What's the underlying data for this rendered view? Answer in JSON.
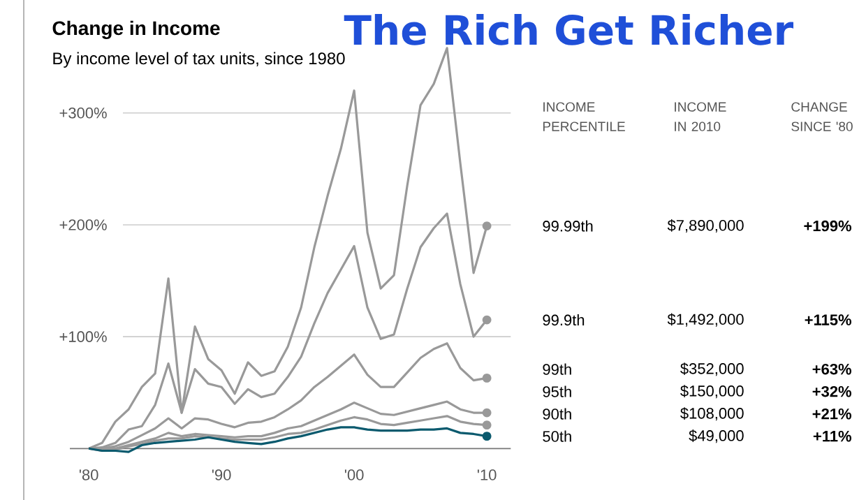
{
  "chart_data": {
    "type": "line",
    "title": "Change in Income",
    "subtitle": "By income level of tax units, since 1980",
    "annotations": [
      "The Rich Get Richer",
      "INCOME PERCENTILE",
      "INCOME IN 2010",
      "CHANGE SINCE '80",
      "$7,890,000",
      "$1,492,000",
      "$352,000",
      "$150,000",
      "$108,000",
      "$49,000",
      "+199%",
      "+115%",
      "+63%",
      "+32%",
      "+21%",
      "+11%"
    ],
    "x": [
      1980,
      1981,
      1982,
      1983,
      1984,
      1985,
      1986,
      1987,
      1988,
      1989,
      1990,
      1991,
      1992,
      1993,
      1994,
      1995,
      1996,
      1997,
      1998,
      1999,
      2000,
      2001,
      2002,
      2003,
      2004,
      2005,
      2006,
      2007,
      2008,
      2009,
      2010
    ],
    "series": [
      {
        "name": "99.99th",
        "color": "#999999",
        "values": [
          0,
          5,
          24,
          35,
          55,
          67,
          152,
          32,
          109,
          80,
          70,
          49,
          77,
          65,
          69,
          91,
          126,
          180,
          226,
          268,
          320,
          193,
          143,
          155,
          235,
          307,
          326,
          358,
          255,
          157,
          199
        ]
      },
      {
        "name": "99.9th",
        "color": "#999999",
        "values": [
          0,
          1,
          5,
          17,
          20,
          39,
          76,
          32,
          71,
          58,
          55,
          40,
          53,
          46,
          49,
          64,
          82,
          112,
          139,
          160,
          181,
          126,
          98,
          102,
          143,
          180,
          197,
          210,
          147,
          100,
          115
        ]
      },
      {
        "name": "99th",
        "color": "#999999",
        "values": [
          0,
          0,
          2,
          6,
          12,
          18,
          27,
          18,
          27,
          26,
          22,
          19,
          23,
          24,
          28,
          35,
          43,
          55,
          64,
          74,
          84,
          66,
          55,
          55,
          68,
          81,
          89,
          94,
          72,
          61,
          63
        ]
      },
      {
        "name": "95th",
        "color": "#999999",
        "values": [
          0,
          -1,
          0,
          3,
          6,
          9,
          14,
          11,
          13,
          12,
          11,
          10,
          11,
          11,
          14,
          18,
          20,
          25,
          30,
          35,
          41,
          36,
          31,
          30,
          33,
          36,
          39,
          42,
          35,
          32,
          32
        ]
      },
      {
        "name": "90th",
        "color": "#999999",
        "values": [
          0,
          -2,
          -1,
          2,
          4,
          7,
          9,
          9,
          11,
          10,
          9,
          8,
          8,
          8,
          10,
          13,
          14,
          17,
          21,
          25,
          28,
          26,
          22,
          21,
          23,
          25,
          27,
          29,
          24,
          22,
          21
        ]
      },
      {
        "name": "50th",
        "color": "#0b5a6e",
        "values": [
          0,
          -2,
          -2,
          -3,
          3,
          5,
          6,
          7,
          8,
          10,
          8,
          6,
          5,
          4,
          6,
          9,
          11,
          14,
          17,
          19,
          19,
          17,
          16,
          16,
          16,
          17,
          17,
          18,
          14,
          13,
          11
        ]
      }
    ],
    "xlim": [
      1975.1,
      2011.8
    ],
    "ylim": [
      -46,
      401
    ],
    "xticks": [
      {
        "value": 1980,
        "label": "'80"
      },
      {
        "value": 1990,
        "label": "'90"
      },
      {
        "value": 2000,
        "label": "'00"
      },
      {
        "value": 2010,
        "label": "'10"
      }
    ],
    "yticks": [
      {
        "value": 100,
        "label": "+100%"
      },
      {
        "value": 200,
        "label": "+200%"
      },
      {
        "value": 300,
        "label": "+300%"
      }
    ],
    "grid": "y",
    "line_style": "solid"
  }
}
